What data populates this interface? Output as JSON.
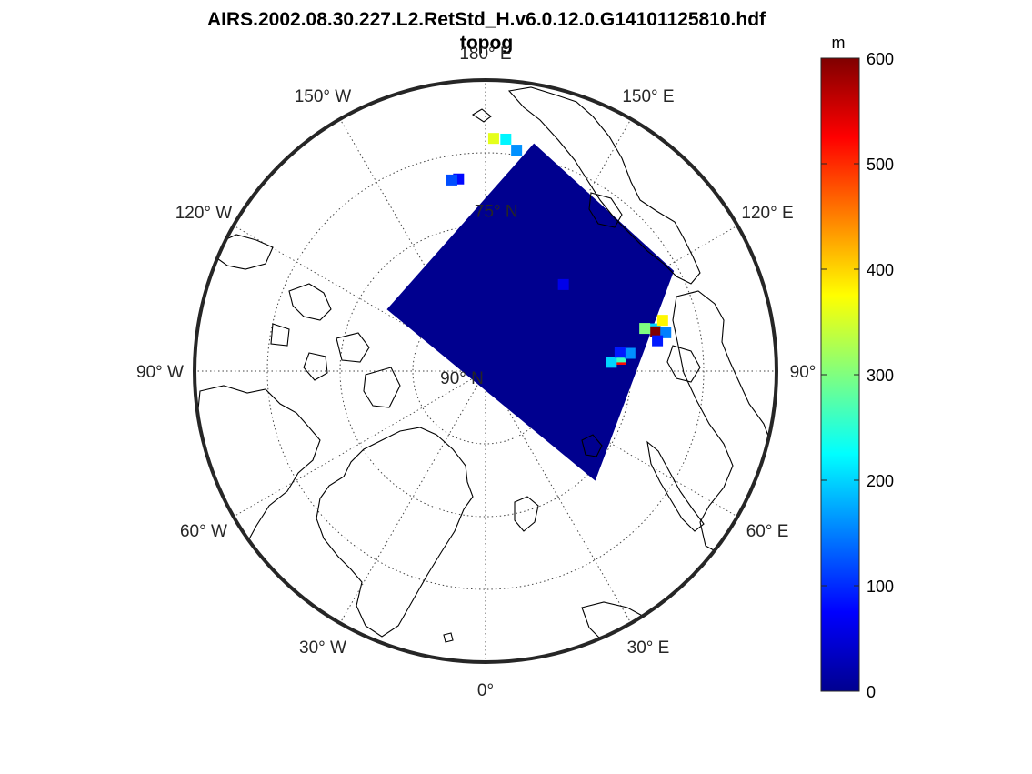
{
  "title": "AIRS.2002.08.30.227.L2.RetStd_H.v6.0.12.0.G14101125810.hdf",
  "subtitle": "topog",
  "colorbar": {
    "unit": "m",
    "min": 0,
    "max": 600,
    "ticks": [
      "0",
      "100",
      "200",
      "300",
      "400",
      "500",
      "600"
    ]
  },
  "map": {
    "projection": "north-polar-stereographic",
    "center_label": "90° N",
    "lat_label": "75° N",
    "lon_labels": [
      {
        "text": "180° E",
        "lon": 180
      },
      {
        "text": "150° E",
        "lon": 150
      },
      {
        "text": "120° E",
        "lon": 120
      },
      {
        "text": "90° E",
        "lon": 90
      },
      {
        "text": "60° E",
        "lon": 60
      },
      {
        "text": "30° E",
        "lon": 30
      },
      {
        "text": "0°",
        "lon": 0
      },
      {
        "text": "30° W",
        "lon": -30
      },
      {
        "text": "60° W",
        "lon": -60
      },
      {
        "text": "90° W",
        "lon": -90
      },
      {
        "text": "120° W",
        "lon": -120
      },
      {
        "text": "150° W",
        "lon": -150
      }
    ]
  },
  "chart_data": {
    "type": "heatmap",
    "variable": "topog",
    "unit": "m",
    "value_range": [
      0,
      600
    ],
    "background_value": 0,
    "swath_corners_lonlat": [
      [
        168,
        66
      ],
      [
        -122,
        78
      ],
      [
        45,
        74
      ],
      [
        118,
        68
      ]
    ],
    "high_value_cells_lonlat_value": [
      [
        178,
        66,
        360
      ],
      [
        175,
        66,
        220
      ],
      [
        172,
        67,
        160
      ],
      [
        -172,
        70,
        80
      ],
      [
        -170,
        70,
        120
      ],
      [
        138,
        78,
        60
      ],
      [
        104,
        72,
        200
      ],
      [
        103,
        72,
        600
      ],
      [
        106,
        71,
        380
      ],
      [
        105,
        73,
        300
      ],
      [
        102,
        71,
        150
      ],
      [
        100,
        72,
        90
      ],
      [
        95,
        76,
        520
      ],
      [
        96,
        76,
        260
      ],
      [
        94,
        77,
        200
      ],
      [
        97,
        75,
        160
      ],
      [
        98,
        76,
        90
      ]
    ]
  }
}
